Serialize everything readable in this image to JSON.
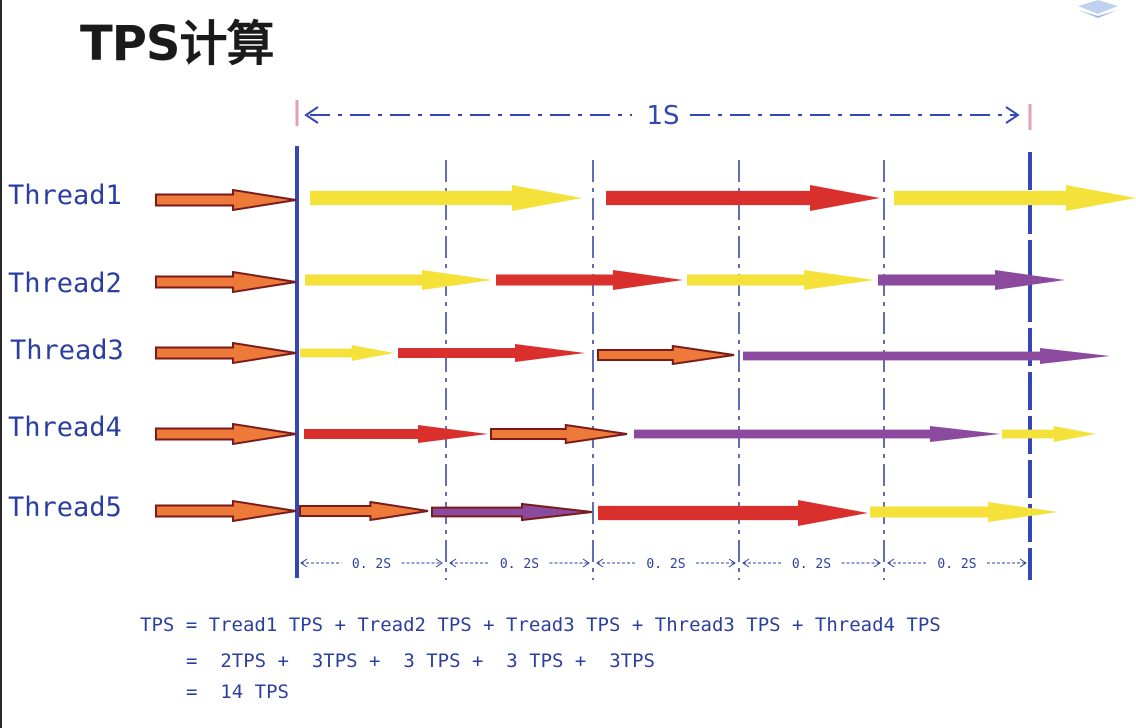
{
  "title": "TPS计算",
  "span_label": "1S",
  "interval_label": "0. 2S",
  "threads": [
    {
      "label": "Thread1"
    },
    {
      "label": "Thread2"
    },
    {
      "label": "Thread3"
    },
    {
      "label": "Thread4"
    },
    {
      "label": "Thread5"
    }
  ],
  "formula": {
    "line1": "TPS = Tread1 TPS + Tread2 TPS + Tread3 TPS + Thread3 TPS + Thread4 TPS",
    "line2": "=  2TPS +  3TPS +  3 TPS +  3 TPS +  3TPS",
    "line3": "=  14 TPS"
  },
  "colors": {
    "text_blue": "#2b3fa0",
    "axis_blue": "#3447b8",
    "yellow": "#f4e23a",
    "red": "#d9302e",
    "purple": "#8c4a9e",
    "orange": "#ee7a3a",
    "dark_red_outline": "#7a1a1a",
    "pink_tick": "#e3a2b4"
  }
}
